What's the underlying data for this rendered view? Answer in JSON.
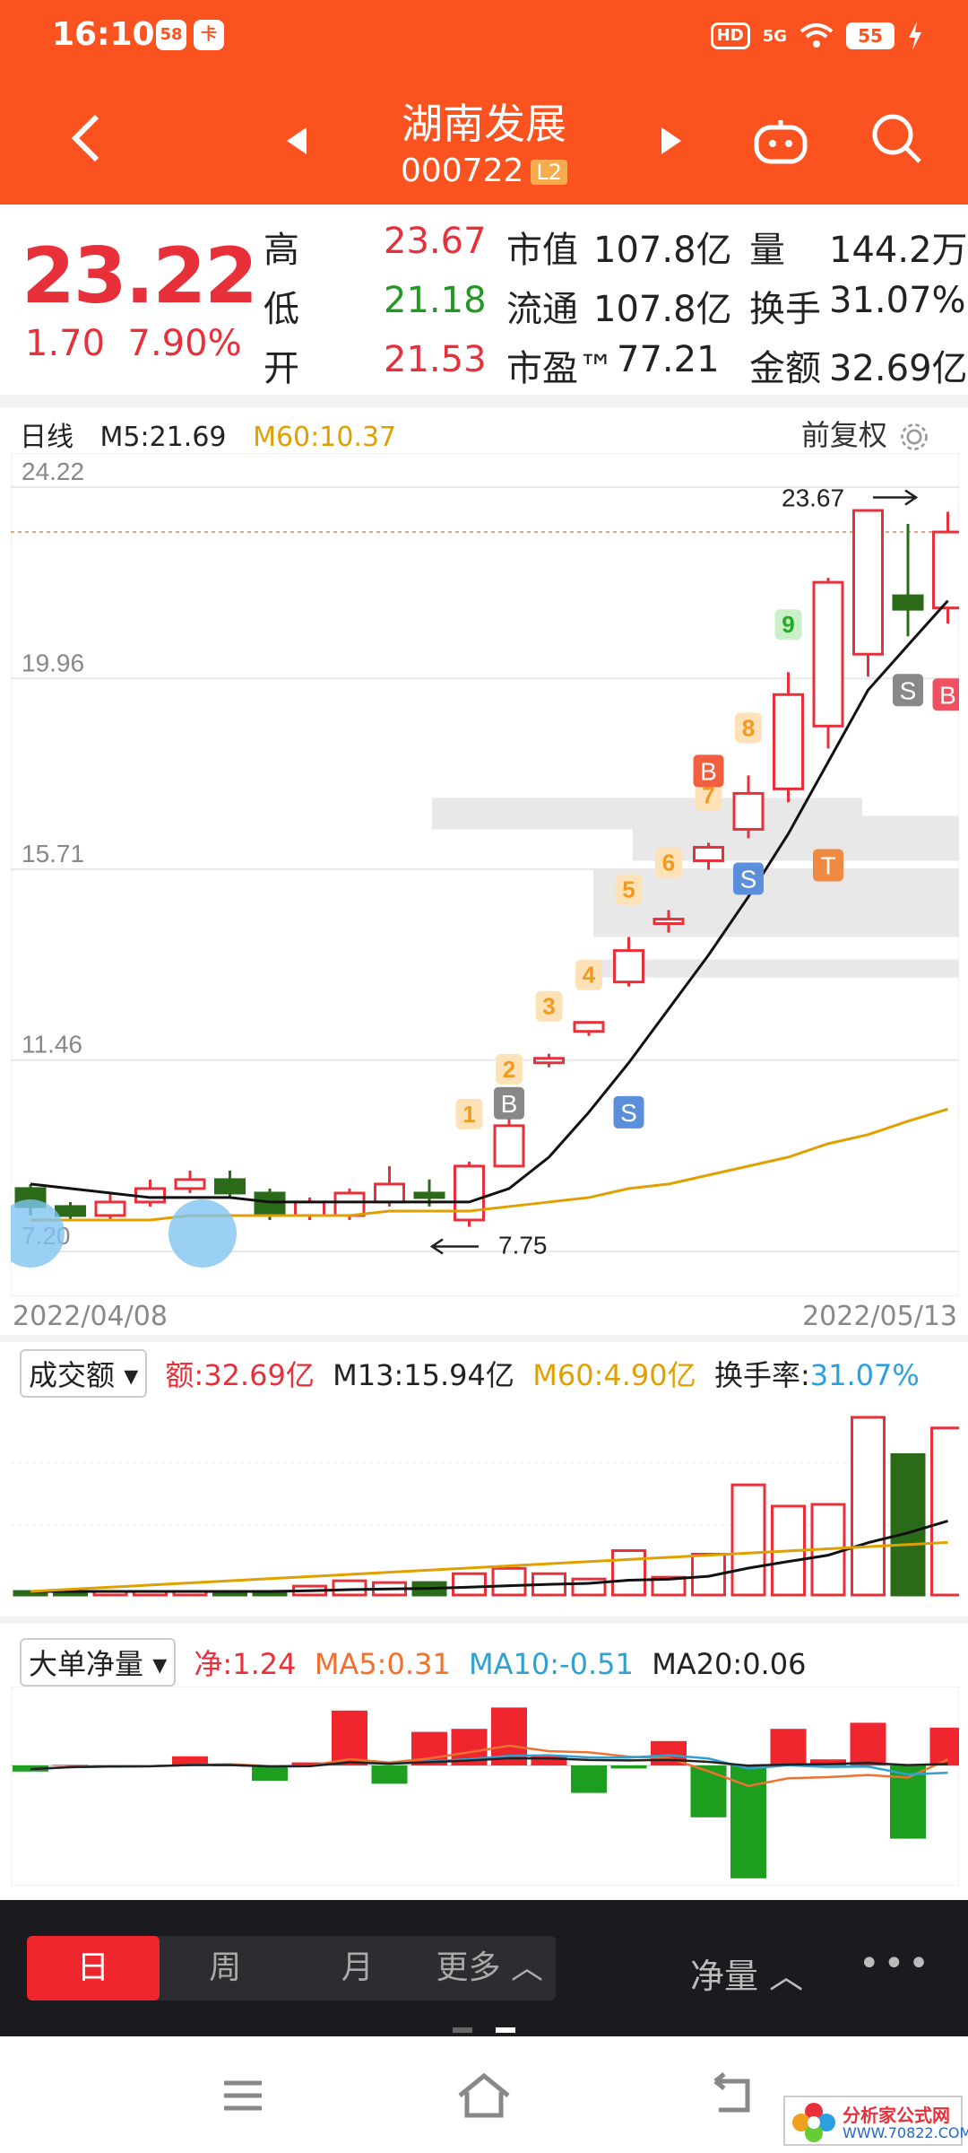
{
  "status_bar": {
    "time": "16:10",
    "badges": [
      "58",
      "卡"
    ],
    "network": "5G",
    "hd": "HD",
    "battery": "55"
  },
  "header": {
    "name": "湖南发展",
    "code": "000722",
    "level": "L2"
  },
  "quote": {
    "price": "23.22",
    "change": "1.70",
    "change_pct": "7.90%",
    "rows": [
      {
        "l1": "高",
        "v1": "23.67",
        "l2": "市值",
        "v2": "107.8亿",
        "l3": "量",
        "v3": "144.2万"
      },
      {
        "l1": "低",
        "v1": "21.18",
        "l2": "流通",
        "v2": "107.8亿",
        "l3": "换手",
        "v3": "31.07%"
      },
      {
        "l1": "开",
        "v1": "21.53",
        "l2": "市盈™",
        "v2": "77.21",
        "l3": "金额",
        "v3": "32.69亿"
      }
    ]
  },
  "kline": {
    "period_label": "日线",
    "m5": "M5:21.69",
    "m60": "M60:10.37",
    "adjust": "前复权",
    "price_ticks": [
      "24.22",
      "19.96",
      "15.71",
      "11.46",
      "7.20"
    ],
    "high_mark": "23.67",
    "low_mark": "7.75",
    "date_start": "2022/04/08",
    "date_end": "2022/05/13",
    "signals": [
      "1",
      "2",
      "3",
      "4",
      "5",
      "6",
      "7",
      "8",
      "9"
    ],
    "markers": [
      "B",
      "S",
      "T",
      "S",
      "B",
      "S",
      "B"
    ]
  },
  "chart_data": {
    "type": "candlestick",
    "x": [
      "2022/04/08",
      "",
      "",
      "",
      "",
      "",
      "",
      "",
      "",
      "",
      "",
      "",
      "",
      "",
      "",
      "",
      "",
      "",
      "",
      "",
      "",
      "",
      "",
      "2022/05/13"
    ],
    "open": [
      8.6,
      8.2,
      8.0,
      8.3,
      8.6,
      8.8,
      8.5,
      8.0,
      8.0,
      8.3,
      8.5,
      7.9,
      9.1,
      11.4,
      12.1,
      13.2,
      14.5,
      15.9,
      16.6,
      17.5,
      18.9,
      20.5,
      21.8,
      21.53
    ],
    "close": [
      8.2,
      8.0,
      8.3,
      8.6,
      8.8,
      8.5,
      8.0,
      8.3,
      8.5,
      8.7,
      8.4,
      9.1,
      10.0,
      11.5,
      12.3,
      13.9,
      14.6,
      16.2,
      17.4,
      19.6,
      22.1,
      23.7,
      21.5,
      23.22
    ],
    "high": [
      8.7,
      8.3,
      8.5,
      8.8,
      9.0,
      9.0,
      8.6,
      8.4,
      8.6,
      9.1,
      8.8,
      9.2,
      10.2,
      11.6,
      12.3,
      14.2,
      14.8,
      16.3,
      17.8,
      20.1,
      22.2,
      23.67,
      23.4,
      23.67
    ],
    "low": [
      8.0,
      7.9,
      7.9,
      8.2,
      8.5,
      8.4,
      7.9,
      7.9,
      7.9,
      8.2,
      8.2,
      7.75,
      9.1,
      11.3,
      12.0,
      13.1,
      14.3,
      15.7,
      16.4,
      17.2,
      18.4,
      20.0,
      20.9,
      21.18
    ],
    "ma5": [
      8.7,
      8.6,
      8.5,
      8.4,
      8.4,
      8.4,
      8.3,
      8.3,
      8.3,
      8.3,
      8.3,
      8.3,
      8.6,
      9.3,
      10.3,
      11.4,
      12.6,
      13.8,
      15.1,
      16.5,
      18.1,
      19.7,
      20.7,
      21.69
    ],
    "ma60": [
      7.9,
      7.9,
      7.9,
      7.9,
      8.0,
      8.0,
      8.0,
      8.0,
      8.0,
      8.1,
      8.1,
      8.1,
      8.2,
      8.3,
      8.4,
      8.6,
      8.7,
      8.9,
      9.1,
      9.3,
      9.6,
      9.8,
      10.1,
      10.37
    ],
    "ylim": [
      7.2,
      24.22
    ],
    "volume": [
      0.2,
      0.2,
      0.2,
      0.2,
      0.2,
      0.2,
      0.2,
      0.5,
      0.8,
      0.7,
      0.7,
      1.2,
      1.5,
      1.2,
      0.9,
      2.5,
      1.0,
      2.3,
      6.2,
      5.0,
      5.1,
      10.0,
      7.9,
      9.4
    ],
    "net_flow": [
      -0.2,
      0.02,
      0.01,
      0.0,
      0.3,
      0.0,
      -0.5,
      0.1,
      1.8,
      -0.6,
      1.1,
      1.2,
      1.9,
      0.3,
      -0.9,
      -0.1,
      0.8,
      -1.7,
      -3.7,
      1.2,
      0.2,
      1.4,
      -2.4,
      1.24
    ]
  },
  "volume_panel": {
    "selector": "成交额",
    "amount": "额:32.69亿",
    "m13": "M13:15.94亿",
    "m60": "M60:4.90亿",
    "turnover_label": "换手率:",
    "turnover": "31.07%"
  },
  "flow_panel": {
    "selector": "大单净量",
    "net": "净:1.24",
    "ma5": "MA5:0.31",
    "ma10": "MA10:-0.51",
    "ma20": "MA20:0.06"
  },
  "bottom": {
    "periods": [
      "日",
      "周",
      "月",
      "更多"
    ],
    "net_label": "净量",
    "more": "•••"
  },
  "watermark": {
    "t1": "分析家公式网",
    "t2": "WWW.70822.COM"
  },
  "colors": {
    "up": "#e8303a",
    "down": "#2a6a19",
    "accent": "#fa5320",
    "ma60": "#e0a000"
  }
}
